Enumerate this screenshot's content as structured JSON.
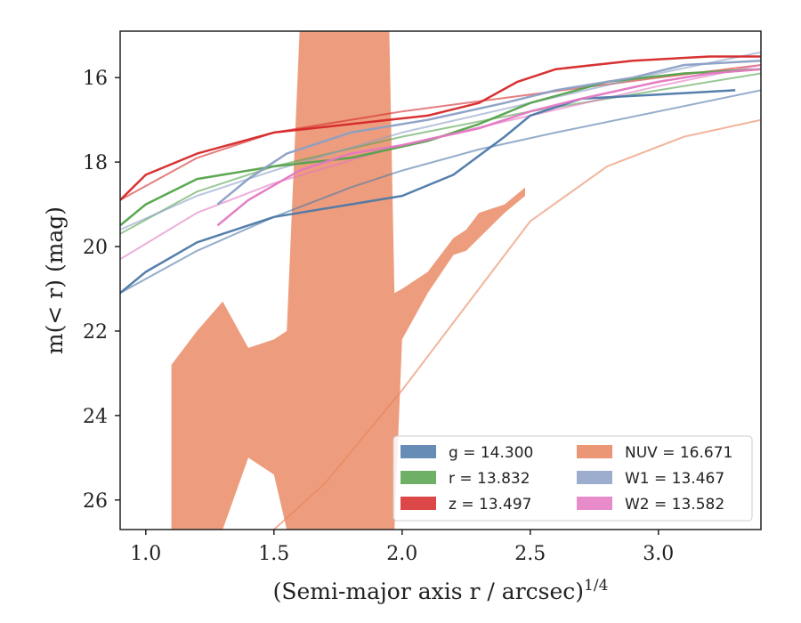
{
  "chart_data": {
    "type": "line",
    "xlabel": "(Semi-major axis r / arcsec)",
    "xlabel_exponent": "1/4",
    "ylabel": "m(< r) (mag)",
    "xlim": [
      0.9,
      3.4
    ],
    "ylim": [
      26.7,
      14.9
    ],
    "y_inverted": true,
    "grid": false,
    "legend_position": "lower-right",
    "xticks": [
      1.0,
      1.5,
      2.0,
      2.5,
      3.0
    ],
    "xtick_labels": [
      "1.0",
      "1.5",
      "2.0",
      "2.5",
      "3.0"
    ],
    "yticks": [
      16,
      18,
      20,
      22,
      24,
      26
    ],
    "ytick_labels": [
      "16",
      "18",
      "20",
      "22",
      "24",
      "26"
    ],
    "series": [
      {
        "name": "g",
        "legend_label": "g = 14.300",
        "color": "#4c78a8",
        "fit": [
          [
            0.9,
            21.1
          ],
          [
            1.2,
            20.1
          ],
          [
            1.5,
            19.3
          ],
          [
            1.8,
            18.6
          ],
          [
            2.0,
            18.2
          ],
          [
            2.3,
            17.7
          ],
          [
            2.6,
            17.3
          ],
          [
            3.0,
            16.8
          ],
          [
            3.4,
            16.3
          ]
        ],
        "profile": [
          [
            0.9,
            21.1
          ],
          [
            1.0,
            20.6
          ],
          [
            1.2,
            19.9
          ],
          [
            1.5,
            19.3
          ],
          [
            1.8,
            19.0
          ],
          [
            2.0,
            18.8
          ],
          [
            2.2,
            18.3
          ],
          [
            2.4,
            17.4
          ],
          [
            2.5,
            16.9
          ],
          [
            2.7,
            16.5
          ],
          [
            3.0,
            16.4
          ],
          [
            3.3,
            16.3
          ]
        ]
      },
      {
        "name": "r",
        "legend_label": "r = 13.832",
        "color": "#54a24b",
        "fit": [
          [
            0.9,
            19.7
          ],
          [
            1.2,
            18.7
          ],
          [
            1.5,
            18.1
          ],
          [
            2.0,
            17.4
          ],
          [
            2.5,
            16.8
          ],
          [
            3.0,
            16.3
          ],
          [
            3.4,
            15.9
          ]
        ],
        "profile": [
          [
            0.9,
            19.5
          ],
          [
            1.0,
            19.0
          ],
          [
            1.2,
            18.4
          ],
          [
            1.5,
            18.1
          ],
          [
            1.8,
            17.9
          ],
          [
            2.1,
            17.5
          ],
          [
            2.3,
            17.1
          ],
          [
            2.5,
            16.6
          ],
          [
            2.8,
            16.1
          ],
          [
            3.1,
            15.9
          ],
          [
            3.4,
            15.8
          ]
        ]
      },
      {
        "name": "z",
        "legend_label": "z = 13.497",
        "color": "#d62728",
        "fit": [
          [
            0.9,
            18.9
          ],
          [
            1.2,
            17.9
          ],
          [
            1.5,
            17.3
          ],
          [
            2.0,
            16.8
          ],
          [
            2.5,
            16.4
          ],
          [
            3.0,
            16.0
          ],
          [
            3.4,
            15.7
          ]
        ],
        "profile": [
          [
            0.9,
            18.9
          ],
          [
            1.0,
            18.3
          ],
          [
            1.2,
            17.8
          ],
          [
            1.5,
            17.3
          ],
          [
            1.8,
            17.1
          ],
          [
            2.1,
            16.9
          ],
          [
            2.3,
            16.6
          ],
          [
            2.45,
            16.1
          ],
          [
            2.6,
            15.8
          ],
          [
            2.9,
            15.6
          ],
          [
            3.2,
            15.5
          ],
          [
            3.4,
            15.5
          ]
        ]
      },
      {
        "name": "NUV",
        "legend_label": "NUV = 16.671",
        "color": "#e8845c",
        "fit": [
          [
            1.5,
            26.7
          ],
          [
            1.7,
            25.6
          ],
          [
            2.0,
            23.4
          ],
          [
            2.3,
            21.0
          ],
          [
            2.5,
            19.4
          ],
          [
            2.8,
            18.1
          ],
          [
            3.1,
            17.4
          ],
          [
            3.4,
            17.0
          ]
        ],
        "band": [
          [
            1.1,
            26.7,
            22.8
          ],
          [
            1.2,
            26.7,
            22.0
          ],
          [
            1.3,
            26.7,
            21.3
          ],
          [
            1.4,
            25.0,
            22.4
          ],
          [
            1.5,
            25.4,
            22.2
          ],
          [
            1.55,
            26.7,
            22.0
          ],
          [
            1.6,
            26.7,
            14.9
          ],
          [
            1.8,
            26.7,
            14.9
          ],
          [
            1.95,
            26.7,
            14.9
          ],
          [
            1.97,
            26.7,
            21.1
          ],
          [
            2.0,
            22.2,
            21.0
          ],
          [
            2.1,
            21.1,
            20.6
          ],
          [
            2.2,
            20.2,
            19.8
          ],
          [
            2.25,
            20.1,
            19.6
          ],
          [
            2.3,
            19.8,
            19.2
          ],
          [
            2.4,
            19.2,
            19.0
          ],
          [
            2.48,
            18.8,
            18.6
          ]
        ]
      },
      {
        "name": "W1",
        "legend_label": "W1 = 13.467",
        "color": "#8b9fc5",
        "fit": [
          [
            0.9,
            19.6
          ],
          [
            1.2,
            18.8
          ],
          [
            1.5,
            18.2
          ],
          [
            2.0,
            17.3
          ],
          [
            2.5,
            16.6
          ],
          [
            3.0,
            15.9
          ],
          [
            3.4,
            15.4
          ]
        ],
        "profile": [
          [
            1.28,
            19.0
          ],
          [
            1.4,
            18.4
          ],
          [
            1.55,
            17.8
          ],
          [
            1.8,
            17.3
          ],
          [
            2.1,
            17.0
          ],
          [
            2.4,
            16.6
          ],
          [
            2.6,
            16.3
          ],
          [
            2.9,
            16.0
          ],
          [
            3.1,
            15.7
          ],
          [
            3.4,
            15.6
          ]
        ]
      },
      {
        "name": "W2",
        "legend_label": "W2 = 13.582",
        "color": "#e377c2",
        "fit": [
          [
            0.9,
            20.3
          ],
          [
            1.2,
            19.2
          ],
          [
            1.5,
            18.5
          ],
          [
            2.0,
            17.6
          ],
          [
            2.5,
            16.9
          ],
          [
            3.0,
            16.2
          ],
          [
            3.4,
            15.7
          ]
        ],
        "profile": [
          [
            1.28,
            19.5
          ],
          [
            1.4,
            18.9
          ],
          [
            1.6,
            18.2
          ],
          [
            1.8,
            17.8
          ],
          [
            2.0,
            17.6
          ],
          [
            2.3,
            17.2
          ],
          [
            2.5,
            16.8
          ],
          [
            2.7,
            16.5
          ],
          [
            3.0,
            16.1
          ],
          [
            3.2,
            15.9
          ],
          [
            3.4,
            15.8
          ]
        ]
      }
    ]
  }
}
